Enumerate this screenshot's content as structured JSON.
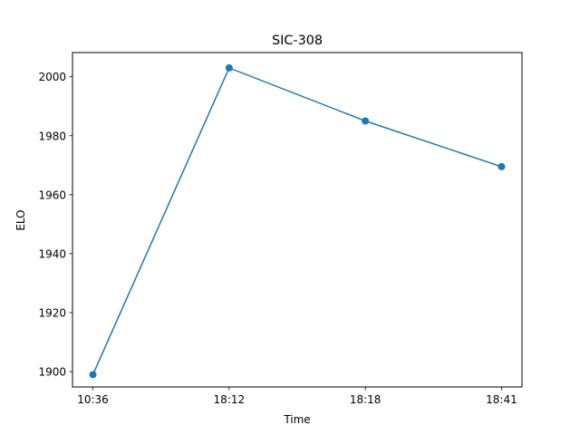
{
  "chart_data": {
    "type": "line",
    "title": "SIC-308",
    "xlabel": "Time",
    "ylabel": "ELO",
    "categories": [
      "10:36",
      "18:12",
      "18:18",
      "18:41"
    ],
    "series": [
      {
        "values": [
          1899,
          2003,
          1985,
          1969.5
        ]
      }
    ],
    "ylim": [
      1894.8,
      2008.2
    ],
    "yticks": [
      1900,
      1920,
      1940,
      1960,
      1980,
      2000
    ],
    "grid": false,
    "legend": "none",
    "colors": {
      "line": "#1f77b4",
      "axes": "#000000",
      "background": "#ffffff"
    }
  }
}
